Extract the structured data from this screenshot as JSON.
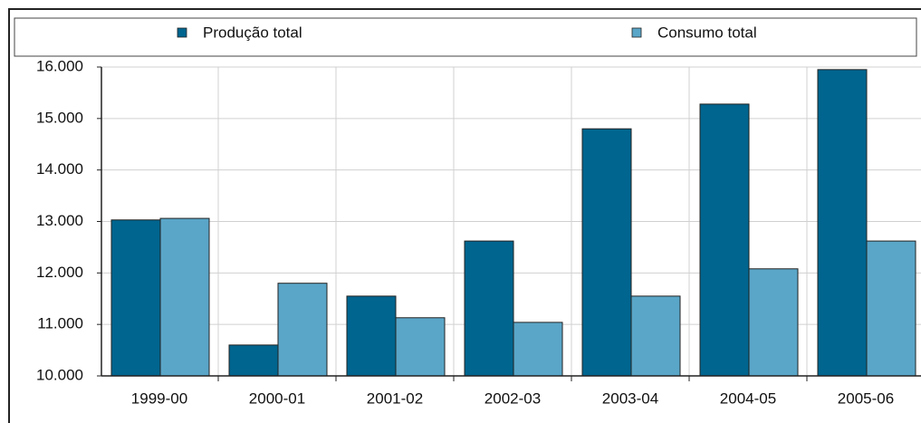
{
  "chart_data": {
    "type": "bar",
    "categories": [
      "1999-00",
      "2000-01",
      "2001-02",
      "2002-03",
      "2003-04",
      "2004-05",
      "2005-06"
    ],
    "series": [
      {
        "name": "Produção total",
        "color": "#00658f",
        "values": [
          13030,
          10600,
          11550,
          12620,
          14800,
          15280,
          15950
        ]
      },
      {
        "name": "Consumo total",
        "color": "#5aa6c8",
        "values": [
          13060,
          11800,
          11130,
          11040,
          11550,
          12080,
          12620
        ]
      }
    ],
    "ylim": [
      10000,
      16000
    ],
    "yticks": [
      {
        "value": 10000,
        "label": "10.000"
      },
      {
        "value": 11000,
        "label": "11.000"
      },
      {
        "value": 12000,
        "label": "12.000"
      },
      {
        "value": 13000,
        "label": "13.000"
      },
      {
        "value": 14000,
        "label": "14.000"
      },
      {
        "value": 15000,
        "label": "15.000"
      },
      {
        "value": 16000,
        "label": "16.000"
      }
    ],
    "grid": true
  }
}
